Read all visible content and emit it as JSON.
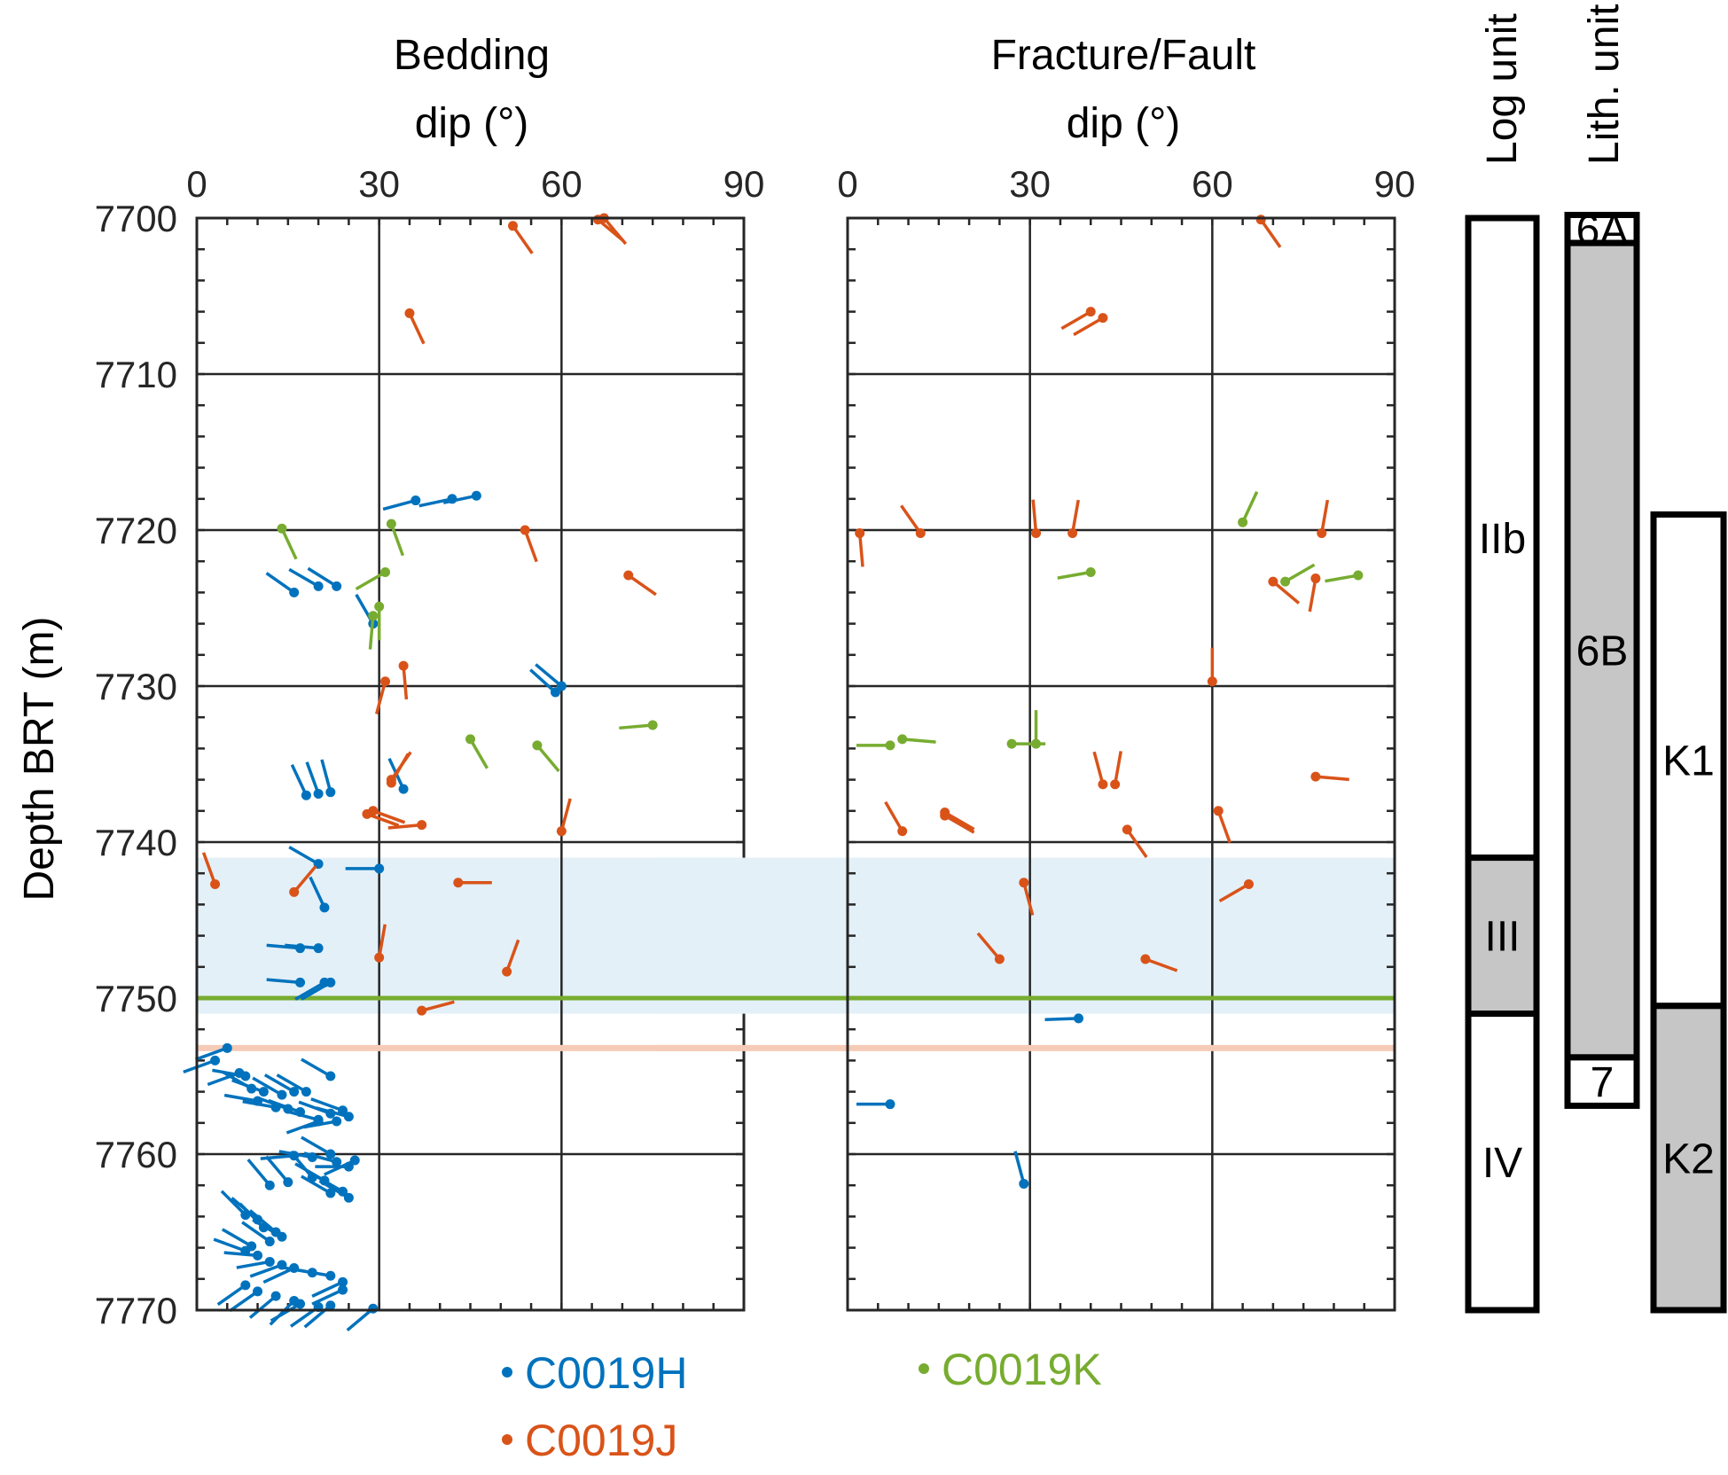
{
  "chart_data": [
    {
      "type": "scatter",
      "subtype": "tadpole",
      "title_lines": [
        "Bedding",
        "dip (°)"
      ],
      "xlabel": "",
      "ylabel": "Depth BRT (m)",
      "xlim": [
        0,
        90
      ],
      "ylim": [
        7700,
        7770
      ],
      "x_ticks": [
        "0",
        "30",
        "60",
        "90"
      ],
      "y_ticks": [
        "7700",
        "7710",
        "7720",
        "7730",
        "7740",
        "7750",
        "7760",
        "7770"
      ],
      "grid": true,
      "note": "each point: [dip_deg, depth_m, tail_azimuth_deg]",
      "series": [
        {
          "name": "C0019H",
          "points": [
            [
              36,
              7718.1,
              255
            ],
            [
              42,
              7718.0,
              258
            ],
            [
              46,
              7717.8,
              258
            ],
            [
              16,
              7724.0,
              305
            ],
            [
              20,
              7723.6,
              300
            ],
            [
              23,
              7723.6,
              302
            ],
            [
              29,
              7726.0,
              330
            ],
            [
              60,
              7730.0,
              310
            ],
            [
              59,
              7730.4,
              312
            ],
            [
              18,
              7737.0,
              335
            ],
            [
              20,
              7736.9,
              340
            ],
            [
              22,
              7736.8,
              345
            ],
            [
              34,
              7736.6,
              335
            ],
            [
              20,
              7741.4,
              300
            ],
            [
              21,
              7744.2,
              335
            ],
            [
              30,
              7741.7,
              270
            ],
            [
              17,
              7746.8,
              275
            ],
            [
              20,
              7746.8,
              275
            ],
            [
              17,
              7749.0,
              275
            ],
            [
              21,
              7749.0,
              240
            ],
            [
              22,
              7749.0,
              240
            ],
            [
              5,
              7753.2,
              250
            ],
            [
              3,
              7754.0,
              250
            ],
            [
              7,
              7754.8,
              250
            ],
            [
              8,
              7755.0,
              280
            ],
            [
              9,
              7755.8,
              300
            ],
            [
              11,
              7756.0,
              290
            ],
            [
              14,
              7756.2,
              300
            ],
            [
              16,
              7756.0,
              300
            ],
            [
              18,
              7756.0,
              300
            ],
            [
              22,
              7755.0,
              300
            ],
            [
              10,
              7756.6,
              280
            ],
            [
              13,
              7757.0,
              280
            ],
            [
              15,
              7757.1,
              290
            ],
            [
              17,
              7757.3,
              290
            ],
            [
              20,
              7757.8,
              285
            ],
            [
              22,
              7757.4,
              290
            ],
            [
              24,
              7757.2,
              290
            ],
            [
              25,
              7757.6,
              285
            ],
            [
              23,
              7757.9,
              260
            ],
            [
              20,
              7757.9,
              250
            ],
            [
              16,
              7760.1,
              265
            ],
            [
              19,
              7760.2,
              280
            ],
            [
              22,
              7760.0,
              300
            ],
            [
              23,
              7760.5,
              285
            ],
            [
              25,
              7760.8,
              270
            ],
            [
              26,
              7760.4,
              245
            ],
            [
              12,
              7762.0,
              320
            ],
            [
              15,
              7761.8,
              320
            ],
            [
              19,
              7761.5,
              320
            ],
            [
              21,
              7761.7,
              300
            ],
            [
              22,
              7762.5,
              300
            ],
            [
              24,
              7762.4,
              300
            ],
            [
              25,
              7762.8,
              300
            ],
            [
              8,
              7763.9,
              315
            ],
            [
              10,
              7764.2,
              310
            ],
            [
              11,
              7764.7,
              315
            ],
            [
              13,
              7765.0,
              310
            ],
            [
              14,
              7765.3,
              300
            ],
            [
              12,
              7765.6,
              305
            ],
            [
              9,
              7765.9,
              300
            ],
            [
              8,
              7766.2,
              290
            ],
            [
              10,
              7766.5,
              275
            ],
            [
              12,
              7766.9,
              260
            ],
            [
              14,
              7767.1,
              250
            ],
            [
              16,
              7767.3,
              245
            ],
            [
              19,
              7767.6,
              280
            ],
            [
              22,
              7767.8,
              280
            ],
            [
              24,
              7768.2,
              245
            ],
            [
              24,
              7768.7,
              245
            ],
            [
              8,
              7768.4,
              235
            ],
            [
              10,
              7768.8,
              235
            ],
            [
              13,
              7769.1,
              230
            ],
            [
              16,
              7769.4,
              225
            ],
            [
              17,
              7769.6,
              240
            ],
            [
              20,
              7769.8,
              235
            ],
            [
              22,
              7769.7,
              230
            ],
            [
              29,
              7769.9,
              230
            ]
          ]
        },
        {
          "name": "C0019J",
          "points": [
            [
              52,
              7700.5,
              145
            ],
            [
              66,
              7700.1,
              130
            ],
            [
              67,
              7700.0,
              140
            ],
            [
              35,
              7706.1,
              155
            ],
            [
              54,
              7720.0,
              160
            ],
            [
              71,
              7722.9,
              125
            ],
            [
              34,
              7728.7,
              175
            ],
            [
              31,
              7729.7,
              195
            ],
            [
              32,
              7736.0,
              35
            ],
            [
              32,
              7736.2,
              30
            ],
            [
              28,
              7738.2,
              110
            ],
            [
              29,
              7738.0,
              110
            ],
            [
              37,
              7738.9,
              265
            ],
            [
              60,
              7739.3,
              15
            ],
            [
              3,
              7742.7,
              340
            ],
            [
              16,
              7743.2,
              40
            ],
            [
              43,
              7742.6,
              90
            ],
            [
              30,
              7747.4,
              10
            ],
            [
              51,
              7748.3,
              20
            ],
            [
              37,
              7750.8,
              75
            ]
          ]
        },
        {
          "name": "C0019K",
          "points": [
            [
              14,
              7719.9,
              155
            ],
            [
              32,
              7719.6,
              160
            ],
            [
              31,
              7722.7,
              240
            ],
            [
              30,
              7724.9,
              180
            ],
            [
              29,
              7725.5,
              185
            ],
            [
              75,
              7732.5,
              265
            ],
            [
              45,
              7733.4,
              150
            ],
            [
              56,
              7733.8,
              140
            ]
          ]
        }
      ],
      "highlight_band": {
        "from": 7741,
        "to": 7751,
        "color": "#e3f0f8"
      },
      "reference_lines": [
        {
          "depth": 7750,
          "color": "#77ac30"
        },
        {
          "depth": 7753.2,
          "color": "#f5cbb8"
        }
      ]
    },
    {
      "type": "scatter",
      "subtype": "tadpole",
      "title_lines": [
        "Fracture/Fault",
        "dip (°)"
      ],
      "xlim": [
        0,
        90
      ],
      "ylim": [
        7700,
        7770
      ],
      "x_ticks": [
        "0",
        "30",
        "60",
        "90"
      ],
      "grid": true,
      "series": [
        {
          "name": "C0019H",
          "points": [
            [
              38,
              7751.3,
              268
            ],
            [
              7,
              7756.8,
              270
            ],
            [
              29,
              7761.9,
              345
            ]
          ]
        },
        {
          "name": "C0019J",
          "points": [
            [
              68,
              7700.1,
              145
            ],
            [
              40,
              7706.0,
              240
            ],
            [
              42,
              7706.4,
              240
            ],
            [
              2,
              7720.2,
              175
            ],
            [
              12,
              7720.2,
              325
            ],
            [
              31,
              7720.2,
              355
            ],
            [
              37,
              7720.2,
              10
            ],
            [
              78,
              7720.2,
              10
            ],
            [
              70,
              7723.3,
              130
            ],
            [
              77,
              7723.1,
              190
            ],
            [
              60,
              7729.7,
              0
            ],
            [
              42,
              7736.3,
              345
            ],
            [
              44,
              7736.3,
              10
            ],
            [
              77,
              7735.8,
              95
            ],
            [
              9,
              7739.3,
              330
            ],
            [
              16,
              7738.1,
              120
            ],
            [
              16,
              7738.3,
              120
            ],
            [
              61,
              7738.0,
              160
            ],
            [
              46,
              7739.2,
              145
            ],
            [
              29,
              7742.6,
              165
            ],
            [
              66,
              7742.7,
              240
            ],
            [
              25,
              7747.5,
              320
            ],
            [
              49,
              7747.5,
              110
            ]
          ]
        },
        {
          "name": "C0019K",
          "points": [
            [
              65,
              7719.5,
              25
            ],
            [
              40,
              7722.7,
              260
            ],
            [
              72,
              7723.3,
              60
            ],
            [
              84,
              7722.9,
              260
            ],
            [
              7,
              7733.8,
              270
            ],
            [
              9,
              7733.4,
              95
            ],
            [
              27,
              7733.7,
              90
            ],
            [
              31,
              7733.7,
              0
            ]
          ]
        }
      ],
      "highlight_band": {
        "from": 7741,
        "to": 7751,
        "color": "#e3f0f8"
      },
      "reference_lines": [
        {
          "depth": 7750,
          "color": "#77ac30"
        },
        {
          "depth": 7753.2,
          "color": "#f5cbb8"
        }
      ]
    }
  ],
  "unit_columns": [
    {
      "title": "Log unit",
      "units": [
        {
          "label": "IIb",
          "from": 7700,
          "to": 7741,
          "fill": "#ffffff"
        },
        {
          "label": "III",
          "from": 7741,
          "to": 7751,
          "fill": "#c6c6c6"
        },
        {
          "label": "IV",
          "from": 7751,
          "to": 7770,
          "fill": "#ffffff"
        }
      ]
    },
    {
      "title": "Lith. unit",
      "units": [
        {
          "label": "6A",
          "from": 7699.8,
          "to": 7701.6,
          "fill": "#ffffff"
        },
        {
          "label": "6B",
          "from": 7701.6,
          "to": 7753.8,
          "fill": "#c6c6c6"
        },
        {
          "label": "7",
          "from": 7753.8,
          "to": 7756.9,
          "fill": "#ffffff"
        }
      ]
    },
    {
      "title": "",
      "units": [
        {
          "label": "K1",
          "from": 7719,
          "to": 7750.5,
          "fill": "#ffffff"
        },
        {
          "label": "K2",
          "from": 7750.5,
          "to": 7770,
          "fill": "#c6c6c6"
        }
      ]
    }
  ],
  "legend": [
    {
      "name": "C0019H",
      "color": "#0072bd"
    },
    {
      "name": "C0019J",
      "color": "#d95319"
    },
    {
      "name": "C0019K",
      "color": "#77ac30"
    }
  ],
  "labels": {
    "bedding_title_1": "Bedding",
    "bedding_title_2": "dip (°)",
    "fracture_title_1": "Fracture/Fault",
    "fracture_title_2": "dip (°)",
    "ylabel": "Depth BRT (m)",
    "log_unit": "Log unit",
    "lith_unit": "Lith. unit"
  }
}
